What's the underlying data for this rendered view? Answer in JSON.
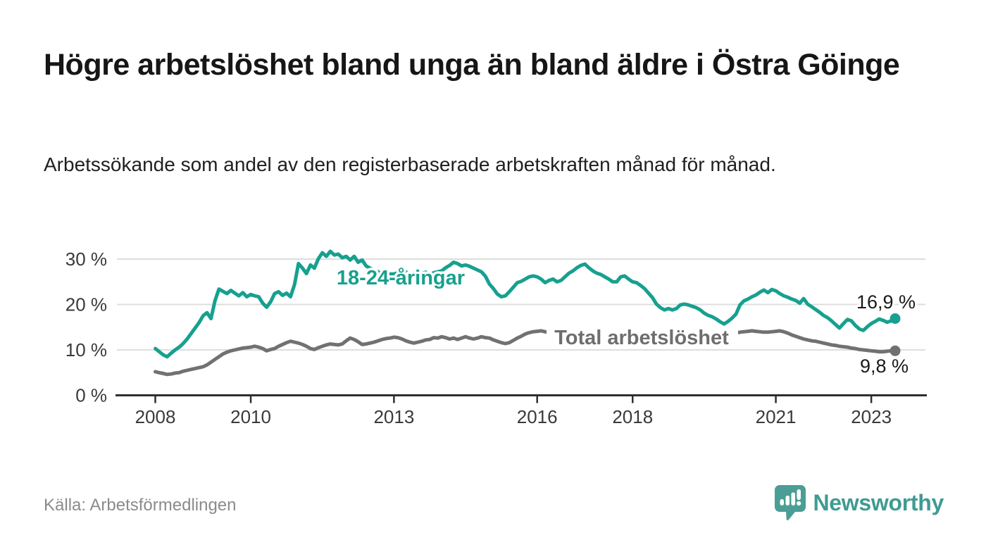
{
  "header": {
    "title": "Högre arbetslöshet bland unga än bland äldre i Östra Göinge",
    "subtitle": "Arbetssökande som andel av den registerbaserade arbetskraften månad för månad."
  },
  "footer": {
    "source": "Källa: Arbetsförmedlingen",
    "logo_text": "Newsworthy",
    "logo_color": "#4a9e96",
    "logo_text_color": "#3f9b91"
  },
  "chart_data": {
    "type": "line",
    "title": "Högre arbetslöshet bland unga än bland äldre i Östra Göinge",
    "subtitle": "Arbetssökande som andel av den registerbaserade arbetskraften månad för månad.",
    "x_unit": "month",
    "x_start": "2008-01",
    "x_end": "2023-07",
    "grid": "horizontal-only",
    "legend_position": "inline-labels",
    "ylim": [
      0,
      33
    ],
    "y_ticks": [
      {
        "value": 30,
        "label": "30 %"
      },
      {
        "value": 20,
        "label": "20 %"
      },
      {
        "value": 10,
        "label": "10 %"
      },
      {
        "value": 0,
        "label": "0 %"
      }
    ],
    "x_ticks": [
      {
        "year": 2008,
        "label": "2008"
      },
      {
        "year": 2010,
        "label": "2010"
      },
      {
        "year": 2013,
        "label": "2013"
      },
      {
        "year": 2016,
        "label": "2016"
      },
      {
        "year": 2018,
        "label": "2018"
      },
      {
        "year": 2021,
        "label": "2021"
      },
      {
        "year": 2023,
        "label": "2023"
      }
    ],
    "series": [
      {
        "name": "18-24-åringar",
        "color": "#17a08f",
        "end_label": "16,9 %",
        "values": [
          10.3,
          9.6,
          8.9,
          8.5,
          9.3,
          10.0,
          10.6,
          11.4,
          12.4,
          13.6,
          14.8,
          16.0,
          17.5,
          18.2,
          16.9,
          20.8,
          23.4,
          22.9,
          22.4,
          23.1,
          22.5,
          21.9,
          22.6,
          21.7,
          22.2,
          21.9,
          21.7,
          20.3,
          19.4,
          20.6,
          22.4,
          22.8,
          22.0,
          22.5,
          21.7,
          24.4,
          29.0,
          28.0,
          26.8,
          28.7,
          28.0,
          30.1,
          31.4,
          30.6,
          31.7,
          30.9,
          31.1,
          30.3,
          30.6,
          29.8,
          30.6,
          29.3,
          29.8,
          28.5,
          28.0,
          27.5,
          27.2,
          26.7,
          26.2,
          26.7,
          26.7,
          27.0,
          26.7,
          27.2,
          26.4,
          27.0,
          26.4,
          26.9,
          27.1,
          26.5,
          27.0,
          27.2,
          27.4,
          28.1,
          28.6,
          29.3,
          29.0,
          28.5,
          28.7,
          28.4,
          28.0,
          27.6,
          27.2,
          26.2,
          24.5,
          23.5,
          22.3,
          21.7,
          21.9,
          22.8,
          23.8,
          24.8,
          25.1,
          25.6,
          26.1,
          26.3,
          26.1,
          25.6,
          24.8,
          25.3,
          25.6,
          25.0,
          25.3,
          26.1,
          26.9,
          27.4,
          28.1,
          28.6,
          28.9,
          28.1,
          27.4,
          26.9,
          26.6,
          26.1,
          25.6,
          25.0,
          25.0,
          26.1,
          26.3,
          25.6,
          25.0,
          24.8,
          24.2,
          23.5,
          22.5,
          21.5,
          20.1,
          19.3,
          18.8,
          19.1,
          18.8,
          19.1,
          19.9,
          20.1,
          19.9,
          19.6,
          19.3,
          18.8,
          18.1,
          17.6,
          17.3,
          16.8,
          16.2,
          15.7,
          16.3,
          17.0,
          17.9,
          19.9,
          20.8,
          21.2,
          21.7,
          22.1,
          22.7,
          23.2,
          22.6,
          23.3,
          23.0,
          22.4,
          21.9,
          21.6,
          21.2,
          20.9,
          20.3,
          21.3,
          20.1,
          19.5,
          18.9,
          18.3,
          17.6,
          17.1,
          16.4,
          15.6,
          14.8,
          15.8,
          16.7,
          16.4,
          15.4,
          14.6,
          14.3,
          15.1,
          15.8,
          16.3,
          16.8,
          16.5,
          16.1,
          16.4,
          16.9
        ]
      },
      {
        "name": "Total arbetslöshet",
        "color": "#717171",
        "end_label": "9,8 %",
        "values": [
          5.2,
          5.0,
          4.8,
          4.6,
          4.7,
          4.9,
          5.0,
          5.3,
          5.5,
          5.7,
          5.9,
          6.1,
          6.3,
          6.7,
          7.3,
          7.9,
          8.5,
          9.1,
          9.5,
          9.8,
          10.0,
          10.2,
          10.4,
          10.5,
          10.6,
          10.8,
          10.6,
          10.3,
          9.8,
          10.1,
          10.3,
          10.8,
          11.2,
          11.6,
          11.9,
          11.7,
          11.5,
          11.2,
          10.8,
          10.3,
          10.1,
          10.5,
          10.8,
          11.1,
          11.3,
          11.2,
          11.1,
          11.3,
          12.0,
          12.6,
          12.3,
          11.8,
          11.2,
          11.3,
          11.5,
          11.7,
          12.0,
          12.3,
          12.5,
          12.6,
          12.8,
          12.7,
          12.4,
          12.0,
          11.7,
          11.5,
          11.7,
          11.9,
          12.2,
          12.3,
          12.7,
          12.6,
          12.9,
          12.7,
          12.4,
          12.6,
          12.3,
          12.6,
          12.9,
          12.6,
          12.4,
          12.6,
          12.9,
          12.7,
          12.6,
          12.2,
          11.9,
          11.6,
          11.4,
          11.6,
          12.1,
          12.6,
          13.0,
          13.5,
          13.8,
          14.0,
          14.1,
          14.2,
          14.0,
          13.8,
          13.7,
          13.8,
          14.0,
          14.1,
          14.0,
          13.9,
          13.8,
          13.9,
          14.0,
          13.9,
          13.8,
          13.7,
          13.6,
          13.7,
          13.8,
          13.9,
          14.0,
          13.9,
          13.8,
          13.7,
          13.8,
          13.7,
          13.6,
          13.4,
          13.2,
          13.1,
          13.0,
          12.9,
          13.0,
          13.1,
          13.2,
          13.3,
          13.4,
          13.3,
          13.2,
          13.1,
          13.0,
          12.9,
          13.0,
          13.1,
          13.2,
          13.1,
          13.2,
          13.3,
          13.4,
          13.5,
          13.7,
          13.9,
          14.0,
          14.1,
          14.2,
          14.1,
          14.0,
          13.9,
          13.9,
          14.0,
          14.1,
          14.2,
          14.0,
          13.7,
          13.3,
          13.0,
          12.7,
          12.4,
          12.2,
          12.0,
          11.9,
          11.7,
          11.5,
          11.3,
          11.1,
          11.0,
          10.8,
          10.7,
          10.6,
          10.4,
          10.3,
          10.1,
          10.0,
          9.9,
          9.8,
          9.7,
          9.6,
          9.6,
          9.7,
          9.8,
          9.8
        ]
      }
    ]
  }
}
